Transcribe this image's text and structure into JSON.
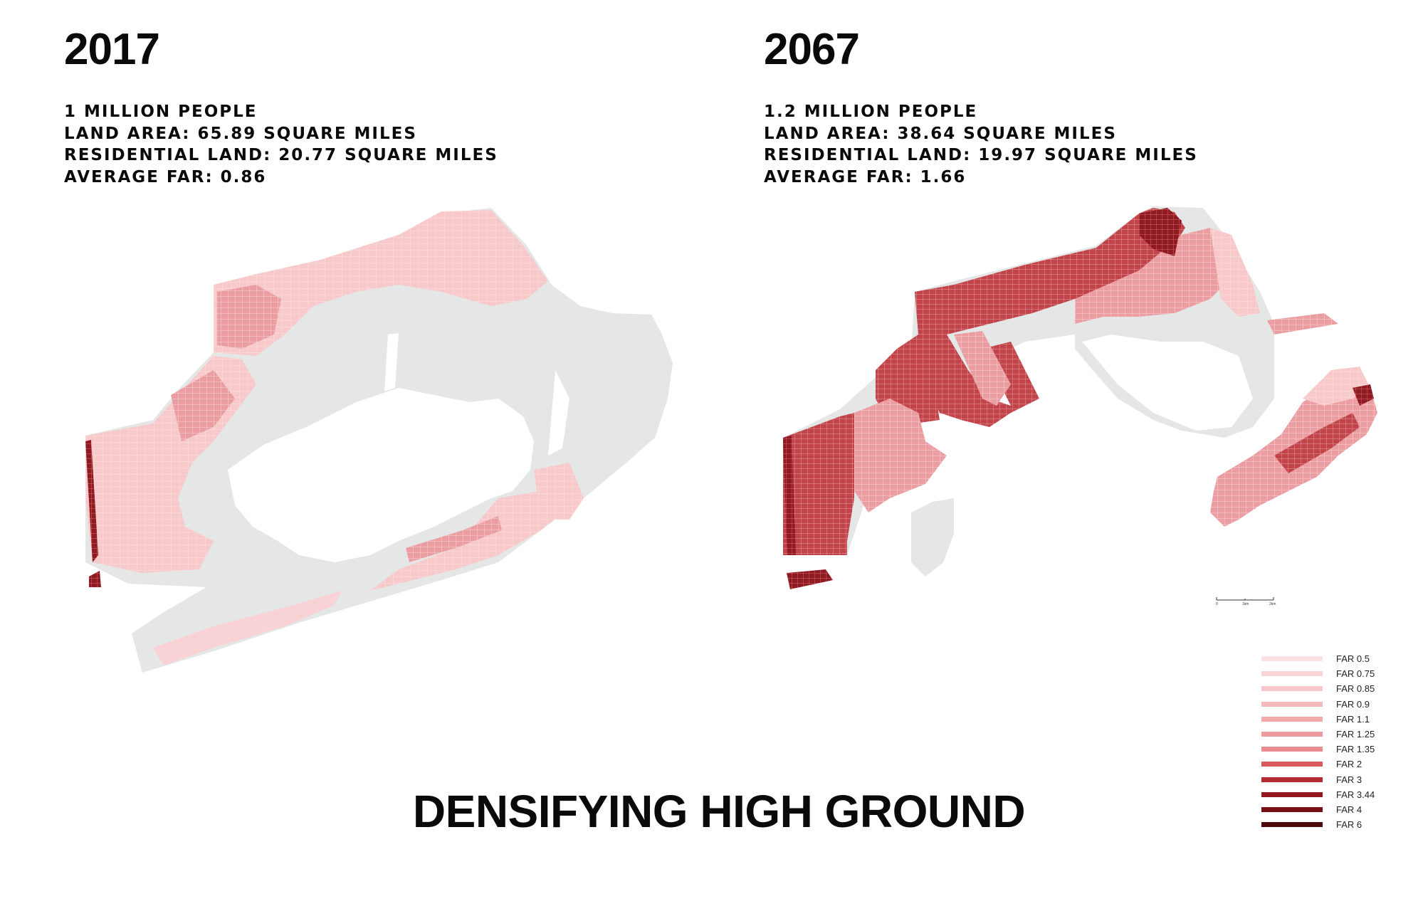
{
  "panels": [
    {
      "year": "2017",
      "stats": [
        "1 MILLION PEOPLE",
        "LAND AREA: 65.89 SQUARE MILES",
        "RESIDENTIAL LAND: 20.77 SQUARE MILES",
        "AVERAGE FAR: 0.86"
      ]
    },
    {
      "year": "2067",
      "stats": [
        "1.2 MILLION PEOPLE",
        "LAND AREA: 38.64 SQUARE MILES",
        "RESIDENTIAL LAND: 19.97 SQUARE MILES",
        "AVERAGE FAR: 1.66"
      ]
    }
  ],
  "title": "DENSIFYING HIGH GROUND",
  "scale_bar": {
    "labels": [
      "0",
      "1km",
      "2km"
    ]
  },
  "legend": [
    {
      "label": "FAR 0.5",
      "color": "#fbe3e3"
    },
    {
      "label": "FAR 0.75",
      "color": "#f9d5d6"
    },
    {
      "label": "FAR 0.85",
      "color": "#f7c7c9"
    },
    {
      "label": "FAR 0.9",
      "color": "#f4b9bb"
    },
    {
      "label": "FAR 1.1",
      "color": "#f1abad"
    },
    {
      "label": "FAR 1.25",
      "color": "#ee9b9e"
    },
    {
      "label": "FAR 1.35",
      "color": "#e98b8f"
    },
    {
      "label": "FAR 2",
      "color": "#d9595f"
    },
    {
      "label": "FAR 3",
      "color": "#b32b33"
    },
    {
      "label": "FAR 3.44",
      "color": "#94161f"
    },
    {
      "label": "FAR 4",
      "color": "#751016"
    },
    {
      "label": "FAR 6",
      "color": "#4a0a0e"
    }
  ],
  "colors": {
    "land": "#e5e6e6",
    "water": "#ffffff"
  }
}
